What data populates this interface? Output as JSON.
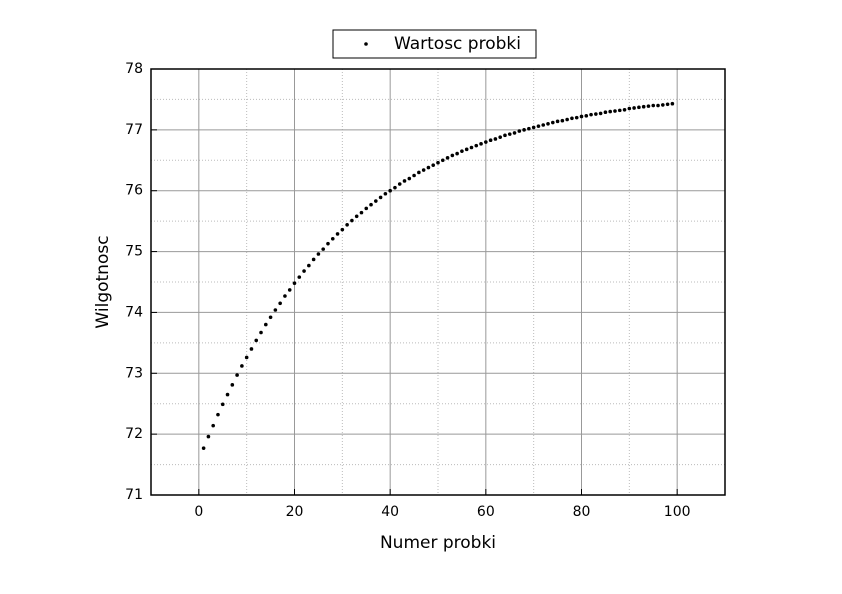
{
  "chart_data": {
    "type": "scatter",
    "xlabel": "Numer probki",
    "ylabel": "Wilgotnosc",
    "xlim": [
      -10,
      110
    ],
    "ylim": [
      71,
      78
    ],
    "xticks": [
      0,
      20,
      40,
      60,
      80,
      100
    ],
    "yticks": [
      71,
      72,
      73,
      74,
      75,
      76,
      77,
      78
    ],
    "xminorticks": [
      -10,
      10,
      30,
      50,
      70,
      90,
      110
    ],
    "yminorticks": [
      71.5,
      72.5,
      73.5,
      74.5,
      75.5,
      76.5,
      77.5
    ],
    "grid": true,
    "legend": "top",
    "series": [
      {
        "name": "Wartosc probki",
        "color": "#000000",
        "x": [
          1,
          2,
          3,
          4,
          5,
          6,
          7,
          8,
          9,
          10,
          11,
          12,
          13,
          14,
          15,
          16,
          17,
          18,
          19,
          20,
          21,
          22,
          23,
          24,
          25,
          26,
          27,
          28,
          29,
          30,
          31,
          32,
          33,
          34,
          35,
          36,
          37,
          38,
          39,
          40,
          41,
          42,
          43,
          44,
          45,
          46,
          47,
          48,
          49,
          50,
          51,
          52,
          53,
          54,
          55,
          56,
          57,
          58,
          59,
          60,
          61,
          62,
          63,
          64,
          65,
          66,
          67,
          68,
          69,
          70,
          71,
          72,
          73,
          74,
          75,
          76,
          77,
          78,
          79,
          80,
          81,
          82,
          83,
          84,
          85,
          86,
          87,
          88,
          89,
          90,
          91,
          92,
          93,
          94,
          95,
          96,
          97,
          98,
          99
        ],
        "values": [
          71.77,
          71.96,
          72.14,
          72.32,
          72.49,
          72.65,
          72.81,
          72.97,
          73.12,
          73.26,
          73.4,
          73.54,
          73.67,
          73.8,
          73.92,
          74.04,
          74.15,
          74.27,
          74.37,
          74.48,
          74.58,
          74.68,
          74.77,
          74.87,
          74.96,
          75.04,
          75.13,
          75.21,
          75.29,
          75.36,
          75.44,
          75.51,
          75.58,
          75.64,
          75.71,
          75.77,
          75.83,
          75.89,
          75.95,
          76.0,
          76.05,
          76.11,
          76.16,
          76.2,
          76.25,
          76.3,
          76.34,
          76.38,
          76.42,
          76.46,
          76.5,
          76.54,
          76.58,
          76.61,
          76.65,
          76.68,
          76.71,
          76.74,
          76.77,
          76.8,
          76.83,
          76.85,
          76.88,
          76.91,
          76.93,
          76.95,
          76.98,
          77.0,
          77.02,
          77.04,
          77.06,
          77.08,
          77.1,
          77.12,
          77.14,
          77.15,
          77.17,
          77.19,
          77.2,
          77.22,
          77.23,
          77.25,
          77.26,
          77.27,
          77.29,
          77.3,
          77.31,
          77.32,
          77.33,
          77.35,
          77.36,
          77.37,
          77.38,
          77.39,
          77.4,
          77.4,
          77.41,
          77.42,
          77.43
        ]
      }
    ]
  }
}
